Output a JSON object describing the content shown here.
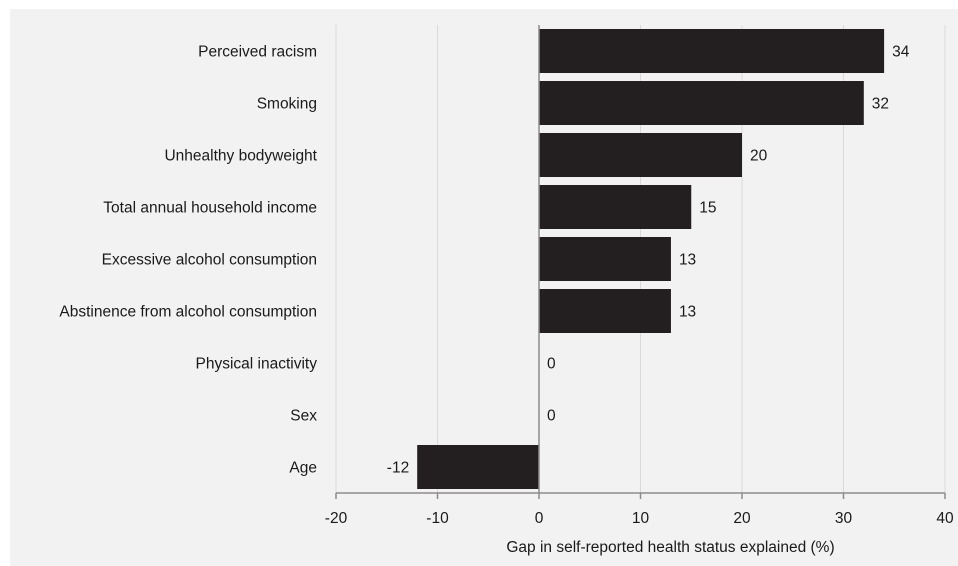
{
  "chart_data": {
    "type": "bar",
    "orientation": "horizontal",
    "categories": [
      "Perceived racism",
      "Smoking",
      "Unhealthy bodyweight",
      "Total annual household income",
      "Excessive alcohol consumption",
      "Abstinence from alcohol consumption",
      "Physical inactivity",
      "Sex",
      "Age"
    ],
    "values": [
      34,
      32,
      20,
      15,
      13,
      13,
      0,
      0,
      -12
    ],
    "value_labels": [
      "34",
      "32",
      "20",
      "15",
      "13",
      "13",
      "0",
      "0",
      "-12"
    ],
    "xlabel": "Gap in self-reported health status explained (%)",
    "ylabel": "",
    "xlim": [
      -20,
      40
    ],
    "xticks": [
      -20,
      -10,
      0,
      10,
      20,
      30,
      40
    ],
    "xtick_labels": [
      "-20",
      "-10",
      "0",
      "10",
      "20",
      "30",
      "40"
    ],
    "grid": "vertical",
    "legend": "none",
    "colors": {
      "bar": "#231f20",
      "grid": "#d9d9d9",
      "axis": "#8c8c8c",
      "background": "#f2f2f2"
    }
  }
}
